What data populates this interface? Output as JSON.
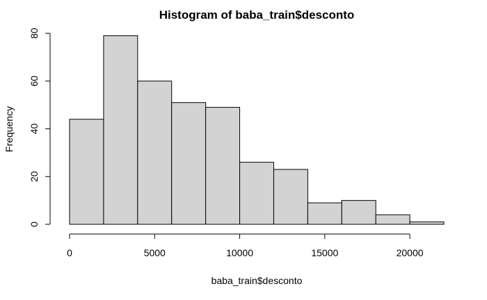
{
  "chart_data": {
    "type": "bar",
    "title": "Histogram of baba_train$desconto",
    "xlabel": "baba_train$desconto",
    "ylabel": "Frequency",
    "bins": [
      {
        "from": 0,
        "to": 2000,
        "value": 44
      },
      {
        "from": 2000,
        "to": 4000,
        "value": 79
      },
      {
        "from": 4000,
        "to": 6000,
        "value": 60
      },
      {
        "from": 6000,
        "to": 8000,
        "value": 51
      },
      {
        "from": 8000,
        "to": 10000,
        "value": 49
      },
      {
        "from": 10000,
        "to": 12000,
        "value": 26
      },
      {
        "from": 12000,
        "to": 14000,
        "value": 23
      },
      {
        "from": 14000,
        "to": 16000,
        "value": 9
      },
      {
        "from": 16000,
        "to": 18000,
        "value": 10
      },
      {
        "from": 18000,
        "to": 20000,
        "value": 4
      },
      {
        "from": 20000,
        "to": 22000,
        "value": 1
      }
    ],
    "xlim": [
      0,
      22000
    ],
    "ylim": [
      0,
      80
    ],
    "xticks": [
      "0",
      "5000",
      "10000",
      "15000",
      "20000"
    ],
    "yticks": [
      "0",
      "20",
      "40",
      "60",
      "80"
    ],
    "grid": false,
    "bar_color": "#d3d3d3"
  }
}
